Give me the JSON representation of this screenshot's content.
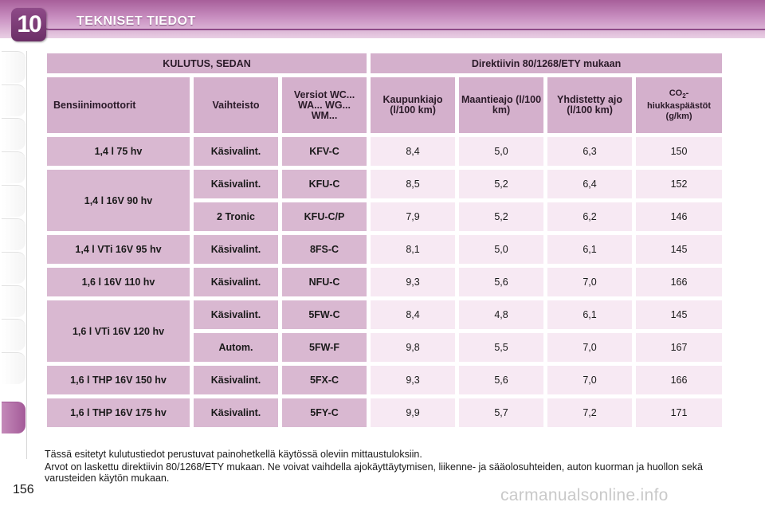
{
  "header": {
    "chapter_number": "10",
    "title": "TEKNISET TIEDOT"
  },
  "table": {
    "top_left": "KULUTUS, SEDAN",
    "top_right": "Direktiivin 80/1268/ETY mukaan",
    "columns": {
      "engine": "Bensiinimoottorit",
      "gearbox": "Vaihteisto",
      "version": "Versiot WC... WA... WG... WM...",
      "urban": "Kaupunkiajo (l/100 km)",
      "extra_urban": "Maantieajo (l/100 km)",
      "combined": "Yhdistetty ajo (l/100 km)",
      "co2_prefix": "CO",
      "co2_sub": "2",
      "co2_suffix": "- hiukkaspäästöt (g/km)"
    },
    "rows": [
      {
        "engine": "1,4 l 75 hv",
        "gearbox": "Käsivalint.",
        "version": "KFV-C",
        "urban": "8,4",
        "extra_urban": "5,0",
        "combined": "6,3",
        "co2": "150"
      },
      {
        "engine": "1,4 l 16V 90 hv",
        "gearbox": "Käsivalint.",
        "version": "KFU-C",
        "urban": "8,5",
        "extra_urban": "5,2",
        "combined": "6,4",
        "co2": "152"
      },
      {
        "engine": "",
        "gearbox": "2 Tronic",
        "version": "KFU-C/P",
        "urban": "7,9",
        "extra_urban": "5,2",
        "combined": "6,2",
        "co2": "146"
      },
      {
        "engine": "1,4 l VTi 16V 95 hv",
        "gearbox": "Käsivalint.",
        "version": "8FS-C",
        "urban": "8,1",
        "extra_urban": "5,0",
        "combined": "6,1",
        "co2": "145"
      },
      {
        "engine": "1,6 l 16V 110 hv",
        "gearbox": "Käsivalint.",
        "version": "NFU-C",
        "urban": "9,3",
        "extra_urban": "5,6",
        "combined": "7,0",
        "co2": "166"
      },
      {
        "engine": "1,6 l VTi 16V 120 hv",
        "gearbox": "Käsivalint.",
        "version": "5FW-C",
        "urban": "8,4",
        "extra_urban": "4,8",
        "combined": "6,1",
        "co2": "145"
      },
      {
        "engine": "",
        "gearbox": "Autom.",
        "version": "5FW-F",
        "urban": "9,8",
        "extra_urban": "5,5",
        "combined": "7,0",
        "co2": "167"
      },
      {
        "engine": "1,6 l THP 16V 150 hv",
        "gearbox": "Käsivalint.",
        "version": "5FX-C",
        "urban": "9,3",
        "extra_urban": "5,6",
        "combined": "7,0",
        "co2": "166"
      },
      {
        "engine": "1,6 l THP 16V 175 hv",
        "gearbox": "Käsivalint.",
        "version": "5FY-C",
        "urban": "9,9",
        "extra_urban": "5,7",
        "combined": "7,2",
        "co2": "171"
      }
    ]
  },
  "notes": {
    "line1": "Tässä esitetyt kulutustiedot perustuvat painohetkellä käytössä oleviin mittaustuloksiin.",
    "line2": "Arvot on laskettu direktiivin 80/1268/ETY mukaan. Ne voivat vaihdella ajokäyttäytymisen, liikenne- ja sääolosuhteiden, auton kuorman ja huollon sekä varusteiden käytön mukaan."
  },
  "page_number": "156",
  "watermark": "carmanualsonline.info",
  "colors": {
    "header_purple": "#a75f9a",
    "cell_header": "#d4b0cc",
    "cell_value": "#f7e9f3"
  }
}
